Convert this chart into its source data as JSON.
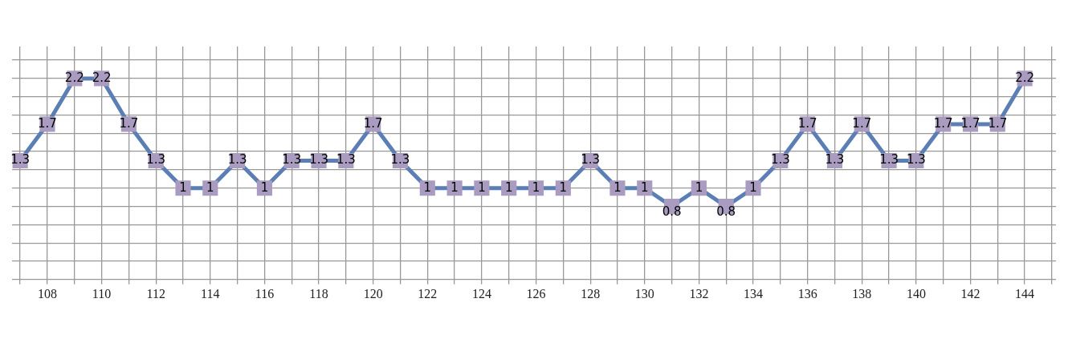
{
  "chart_data": {
    "type": "line",
    "x": [
      107,
      108,
      109,
      110,
      111,
      112,
      113,
      114,
      115,
      116,
      117,
      118,
      119,
      120,
      121,
      122,
      123,
      124,
      125,
      126,
      127,
      128,
      129,
      130,
      131,
      132,
      133,
      134,
      135,
      136,
      137,
      138,
      139,
      140,
      141,
      142,
      143,
      144
    ],
    "values": [
      1.3,
      1.7,
      2.2,
      2.2,
      1.7,
      1.3,
      1,
      1,
      1.3,
      1,
      1.3,
      1.3,
      1.3,
      1.7,
      1.3,
      1,
      1,
      1,
      1,
      1,
      1,
      1.3,
      1,
      1,
      0.8,
      1,
      0.8,
      1,
      1.3,
      1.7,
      1.3,
      1.7,
      1.3,
      1.3,
      1.7,
      1.7,
      1.7,
      2.2
    ],
    "color": "#5b7fb5",
    "marker": "square",
    "data_labels": true,
    "grid": true,
    "tick_labels": "x",
    "xlim": [
      106.7,
      145.15
    ],
    "xticks": [
      {
        "value": 107,
        "label": null
      },
      108,
      {
        "value": 109,
        "label": null
      },
      110,
      {
        "value": 111,
        "label": null
      },
      112,
      {
        "value": 113,
        "label": null
      },
      114,
      {
        "value": 115,
        "label": null
      },
      116,
      {
        "value": 117,
        "label": null
      },
      118,
      {
        "value": 119,
        "label": null
      },
      120,
      {
        "value": 121,
        "label": null
      },
      122,
      {
        "value": 123,
        "label": null
      },
      124,
      {
        "value": 125,
        "label": null
      },
      126,
      {
        "value": 127,
        "label": null
      },
      128,
      {
        "value": 129,
        "label": null
      },
      130,
      {
        "value": 131,
        "label": null
      },
      132,
      {
        "value": 133,
        "label": null
      },
      134,
      {
        "value": 135,
        "label": null
      },
      136,
      {
        "value": 137,
        "label": null
      },
      138,
      {
        "value": 139,
        "label": null
      },
      140,
      {
        "value": 141,
        "label": null
      },
      142,
      {
        "value": 143,
        "label": null
      },
      144,
      {
        "value": 145,
        "label": null
      }
    ],
    "ylim": [
      0,
      2.55
    ],
    "yticks": [
      {
        "value": 0,
        "label": null
      },
      {
        "value": 0.2,
        "label": null
      },
      {
        "value": 0.4,
        "label": null
      },
      {
        "value": 0.6,
        "label": null
      },
      {
        "value": 0.8,
        "label": null
      },
      {
        "value": 1,
        "label": null
      },
      {
        "value": 1.2,
        "label": null
      },
      {
        "value": 1.4,
        "label": null
      },
      {
        "value": 1.6,
        "label": null
      },
      {
        "value": 1.8,
        "label": null
      },
      {
        "value": 2,
        "label": null
      },
      {
        "value": 2.2,
        "label": null
      },
      {
        "value": 2.4,
        "label": null
      }
    ]
  }
}
